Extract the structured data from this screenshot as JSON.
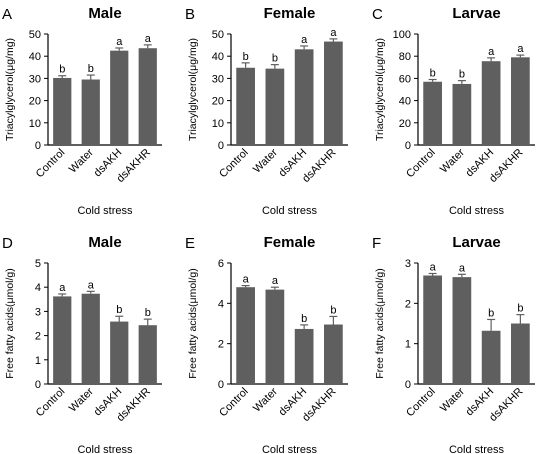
{
  "figure": {
    "bar_color": "#5f5f5f",
    "axis_color": "#000000"
  },
  "chart_data": [
    {
      "type": "bar",
      "panel_letter": "A",
      "title": "Male",
      "xlabel": "Cold stress",
      "ylabel": "Triacylglycerol(μg/mg)",
      "categories": [
        "Control",
        "Water",
        "dsAKH",
        "dsAKHR"
      ],
      "values": [
        30.2,
        29.5,
        42.5,
        43.6
      ],
      "errors": [
        1.0,
        2.0,
        1.2,
        1.5
      ],
      "significance": [
        "b",
        "b",
        "a",
        "a"
      ],
      "ylim": [
        0,
        50
      ],
      "yticks": [
        0,
        10,
        20,
        30,
        40,
        50
      ],
      "ytick_labels": [
        "0",
        "10",
        "20",
        "30",
        "40",
        "50"
      ]
    },
    {
      "type": "bar",
      "panel_letter": "B",
      "title": "Female",
      "xlabel": "Cold stress",
      "ylabel": "Triacylglycerol(μg/mg)",
      "categories": [
        "Control",
        "Water",
        "dsAKH",
        "dsAKHR"
      ],
      "values": [
        34.8,
        34.4,
        43.1,
        46.6
      ],
      "errors": [
        2.2,
        1.8,
        1.5,
        1.2
      ],
      "significance": [
        "b",
        "b",
        "a",
        "a"
      ],
      "ylim": [
        0,
        50
      ],
      "yticks": [
        0,
        10,
        20,
        30,
        40,
        50
      ],
      "ytick_labels": [
        "0",
        "10",
        "20",
        "30",
        "40",
        "50"
      ]
    },
    {
      "type": "bar",
      "panel_letter": "C",
      "title": "Larvae",
      "xlabel": "Cold stress",
      "ylabel": "Triacylglycerol(μg/mg)",
      "categories": [
        "Control",
        "Water",
        "dsAKH",
        "dsAKHR"
      ],
      "values": [
        57,
        55,
        75.5,
        79
      ],
      "errors": [
        2,
        3,
        3,
        2
      ],
      "significance": [
        "b",
        "b",
        "a",
        "a"
      ],
      "ylim": [
        0,
        100
      ],
      "yticks": [
        0,
        20,
        40,
        60,
        80,
        100
      ],
      "ytick_labels": [
        "0",
        "20",
        "40",
        "60",
        "80",
        "100"
      ]
    },
    {
      "type": "bar",
      "panel_letter": "D",
      "title": "Male",
      "xlabel": "Cold stress",
      "ylabel": "Free fatty acids(μmol/g)",
      "categories": [
        "Control",
        "Water",
        "dsAKH",
        "dsAKHR"
      ],
      "values": [
        3.62,
        3.73,
        2.58,
        2.43
      ],
      "errors": [
        0.1,
        0.1,
        0.22,
        0.25
      ],
      "significance": [
        "a",
        "a",
        "b",
        "b"
      ],
      "ylim": [
        0,
        5
      ],
      "yticks": [
        0,
        1,
        2,
        3,
        4,
        5
      ],
      "ytick_labels": [
        "0",
        "1",
        "2",
        "3",
        "4",
        "5"
      ]
    },
    {
      "type": "bar",
      "panel_letter": "E",
      "title": "Female",
      "xlabel": "Cold stress",
      "ylabel": "Free fatty acids(μmol/g)",
      "categories": [
        "Control",
        "Water",
        "dsAKH",
        "dsAKHR"
      ],
      "values": [
        4.8,
        4.68,
        2.73,
        2.95
      ],
      "errors": [
        0.08,
        0.12,
        0.2,
        0.4
      ],
      "significance": [
        "a",
        "a",
        "b",
        "b"
      ],
      "ylim": [
        0,
        6
      ],
      "yticks": [
        0,
        2,
        4,
        6
      ],
      "ytick_labels": [
        "0",
        "2",
        "4",
        "6"
      ]
    },
    {
      "type": "bar",
      "panel_letter": "F",
      "title": "Larvae",
      "xlabel": "Cold stress",
      "ylabel": "Free fatty acids(μmol/g)",
      "categories": [
        "Control",
        "Water",
        "dsAKH",
        "dsAKHR"
      ],
      "values": [
        2.69,
        2.65,
        1.32,
        1.5
      ],
      "errors": [
        0.05,
        0.07,
        0.28,
        0.22
      ],
      "significance": [
        "a",
        "a",
        "b",
        "b"
      ],
      "ylim": [
        0,
        3
      ],
      "yticks": [
        0,
        1,
        2,
        3
      ],
      "ytick_labels": [
        "0",
        "1",
        "2",
        "3"
      ]
    }
  ]
}
